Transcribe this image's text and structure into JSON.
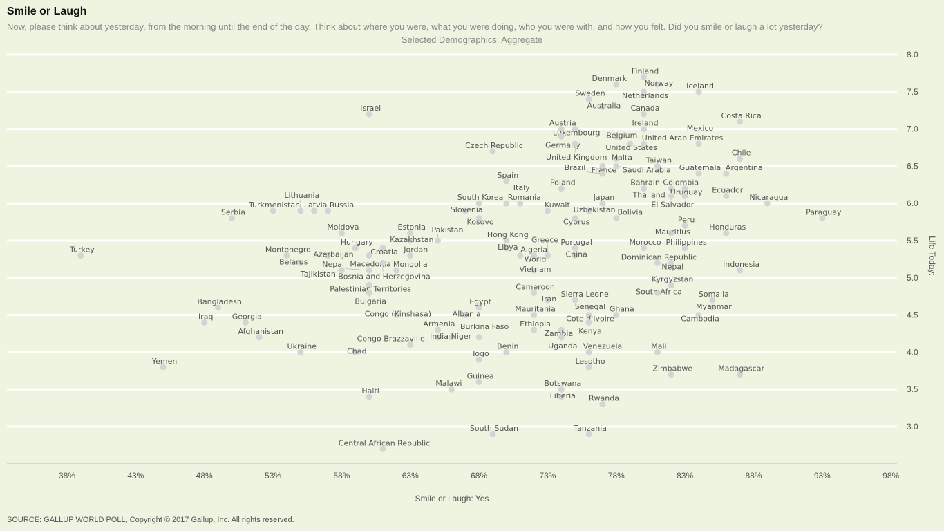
{
  "title": "Smile or Laugh",
  "subtitle": "Now, please think about yesterday, from the morning until the end of the day. Think about where you were, what you were doing, who you were with, and how you felt. Did you smile or laugh a lot yesterday?",
  "demographics": "Selected Demographics: Aggregate",
  "source": "SOURCE: GALLUP WORLD POLL, Copyright © 2017 Gallup, Inc. All rights reserved.",
  "colors": {
    "background": "#eef4df",
    "point": "#d4d4d4",
    "label": "#555555",
    "grid": "#ffffff"
  },
  "chart_data": {
    "type": "scatter",
    "xlabel": "Smile or Laugh: Yes",
    "ylabel": "Life Today:",
    "xlim": [
      34,
      98
    ],
    "ylim": [
      2.5,
      8.0
    ],
    "x_ticks": [
      "38%",
      "43%",
      "48%",
      "53%",
      "58%",
      "63%",
      "68%",
      "73%",
      "78%",
      "83%",
      "88%",
      "93%",
      "98%"
    ],
    "x_tick_values": [
      38,
      43,
      48,
      53,
      58,
      63,
      68,
      73,
      78,
      83,
      88,
      93,
      98
    ],
    "y_ticks": [
      "3.0",
      "3.5",
      "4.0",
      "4.5",
      "5.0",
      "5.5",
      "6.0",
      "6.5",
      "7.0",
      "7.5",
      "8.0"
    ],
    "y_tick_values": [
      3.0,
      3.5,
      4.0,
      4.5,
      5.0,
      5.5,
      6.0,
      6.5,
      7.0,
      7.5,
      8.0
    ],
    "grid": true,
    "points": [
      {
        "label": "Finland",
        "x": 80,
        "y": 7.7
      },
      {
        "label": "Denmark",
        "x": 78,
        "y": 7.6
      },
      {
        "label": "Norway",
        "x": 81,
        "y": 7.6
      },
      {
        "label": "Netherlands",
        "x": 80,
        "y": 7.5
      },
      {
        "label": "Iceland",
        "x": 84,
        "y": 7.5
      },
      {
        "label": "Sweden",
        "x": 76,
        "y": 7.4
      },
      {
        "label": "Australia",
        "x": 77,
        "y": 7.3
      },
      {
        "label": "Canada",
        "x": 80,
        "y": 7.2
      },
      {
        "label": "Israel",
        "x": 60,
        "y": 7.2
      },
      {
        "label": "Costa Rica",
        "x": 87,
        "y": 7.1
      },
      {
        "label": "Austria",
        "x": 74,
        "y": 7.0
      },
      {
        "label": "Luxembourg",
        "x": 75,
        "y": 7.0
      },
      {
        "label": "Ireland",
        "x": 80,
        "y": 7.0
      },
      {
        "label": "Germany",
        "x": 74,
        "y": 6.9
      },
      {
        "label": "Belgium",
        "x": 78,
        "y": 6.9
      },
      {
        "label": "United Kingdom",
        "x": 75,
        "y": 6.8
      },
      {
        "label": "United States",
        "x": 79,
        "y": 6.8
      },
      {
        "label": "United Arab Emirates",
        "x": 80,
        "y": 6.8
      },
      {
        "label": "Mexico",
        "x": 84,
        "y": 6.8
      },
      {
        "label": "Czech Republic",
        "x": 69,
        "y": 6.7
      },
      {
        "label": "Malta",
        "x": 78,
        "y": 6.6
      },
      {
        "label": "Chile",
        "x": 87,
        "y": 6.6
      },
      {
        "label": "France",
        "x": 77,
        "y": 6.5
      },
      {
        "label": "Saudi Arabia",
        "x": 78,
        "y": 6.5
      },
      {
        "label": "Taiwan",
        "x": 81,
        "y": 6.5
      },
      {
        "label": "Brazil",
        "x": 77,
        "y": 6.4
      },
      {
        "label": "Guatemala",
        "x": 84,
        "y": 6.4
      },
      {
        "label": "Argentina",
        "x": 86,
        "y": 6.4
      },
      {
        "label": "Spain",
        "x": 70,
        "y": 6.3
      },
      {
        "label": "Poland",
        "x": 74,
        "y": 6.2
      },
      {
        "label": "Bahrain",
        "x": 80,
        "y": 6.2
      },
      {
        "label": "Colombia",
        "x": 82,
        "y": 6.2
      },
      {
        "label": "Uruguay",
        "x": 83,
        "y": 6.2
      },
      {
        "label": "El Salvador",
        "x": 82,
        "y": 6.1
      },
      {
        "label": "Thailand",
        "x": 83,
        "y": 6.1
      },
      {
        "label": "Ecuador",
        "x": 86,
        "y": 6.1
      },
      {
        "label": "Japan",
        "x": 77,
        "y": 6.0
      },
      {
        "label": "Nicaragua",
        "x": 89,
        "y": 6.0
      },
      {
        "label": "South Korea",
        "x": 68,
        "y": 6.0
      },
      {
        "label": "Romania",
        "x": 70,
        "y": 6.0
      },
      {
        "label": "Italy",
        "x": 71,
        "y": 6.0
      },
      {
        "label": "Turkmenistan",
        "x": 53,
        "y": 5.9
      },
      {
        "label": "Lithuania",
        "x": 55,
        "y": 5.9
      },
      {
        "label": "Latvia",
        "x": 56,
        "y": 5.9
      },
      {
        "label": "Russia",
        "x": 57,
        "y": 5.9
      },
      {
        "label": "Slovenia",
        "x": 67,
        "y": 5.9
      },
      {
        "label": "Kuwait",
        "x": 73,
        "y": 5.9
      },
      {
        "label": "Uzbekistan",
        "x": 76,
        "y": 5.9
      },
      {
        "label": "Serbia",
        "x": 50,
        "y": 5.8
      },
      {
        "label": "Kosovo",
        "x": 68,
        "y": 5.8
      },
      {
        "label": "Cyprus",
        "x": 75,
        "y": 5.8
      },
      {
        "label": "Bolivia",
        "x": 78,
        "y": 5.8
      },
      {
        "label": "Paraguay",
        "x": 93,
        "y": 5.8
      },
      {
        "label": "Peru",
        "x": 83,
        "y": 5.7
      },
      {
        "label": "Moldova",
        "x": 58,
        "y": 5.6
      },
      {
        "label": "Estonia",
        "x": 63,
        "y": 5.6
      },
      {
        "label": "Mauritius",
        "x": 82,
        "y": 5.6
      },
      {
        "label": "Honduras",
        "x": 86,
        "y": 5.6
      },
      {
        "label": "Kazakhstan",
        "x": 63,
        "y": 5.5
      },
      {
        "label": "Pakistan",
        "x": 65,
        "y": 5.5
      },
      {
        "label": "Hong Kong",
        "x": 70,
        "y": 5.5
      },
      {
        "label": "Hungary",
        "x": 59,
        "y": 5.4
      },
      {
        "label": "Croatia",
        "x": 61,
        "y": 5.4
      },
      {
        "label": "Libya",
        "x": 70,
        "y": 5.4
      },
      {
        "label": "Portugal",
        "x": 75,
        "y": 5.4
      },
      {
        "label": "Morocco",
        "x": 80,
        "y": 5.4
      },
      {
        "label": "Philippines",
        "x": 83,
        "y": 5.4
      },
      {
        "label": "Turkey",
        "x": 39,
        "y": 5.3
      },
      {
        "label": "Montenegro",
        "x": 54,
        "y": 5.3
      },
      {
        "label": "Azerbaijan",
        "x": 57,
        "y": 5.3
      },
      {
        "label": "Macedonia",
        "x": 60,
        "y": 5.3
      },
      {
        "label": "Jordan",
        "x": 63,
        "y": 5.3
      },
      {
        "label": "Algeria",
        "x": 71,
        "y": 5.3
      },
      {
        "label": "World",
        "x": 72,
        "y": 5.3
      },
      {
        "label": "Greece",
        "x": 73,
        "y": 5.3
      },
      {
        "label": "China",
        "x": 75,
        "y": 5.3
      },
      {
        "label": "Belarus",
        "x": 55,
        "y": 5.2
      },
      {
        "label": "Bosnia and Herzegovina",
        "x": 61,
        "y": 5.2
      },
      {
        "label": "Dominican Republic",
        "x": 81,
        "y": 5.2
      },
      {
        "label": "Nepal",
        "x": 82,
        "y": 5.2
      },
      {
        "label": "Tajikistan",
        "x": 58,
        "y": 5.1
      },
      {
        "label": "Nepal",
        "x": 60,
        "y": 5.1
      },
      {
        "label": "Mongolia",
        "x": 62,
        "y": 5.1
      },
      {
        "label": "Vietnam",
        "x": 72,
        "y": 5.1
      },
      {
        "label": "Indonesia",
        "x": 87,
        "y": 5.1
      },
      {
        "label": "Palestinian Territories",
        "x": 60,
        "y": 4.9
      },
      {
        "label": "Kyrgyzstan",
        "x": 82,
        "y": 4.9
      },
      {
        "label": "Bulgaria",
        "x": 60,
        "y": 4.8
      },
      {
        "label": "Cameroon",
        "x": 72,
        "y": 4.8
      },
      {
        "label": "South Africa",
        "x": 81,
        "y": 4.8
      },
      {
        "label": "Iran",
        "x": 73,
        "y": 4.7
      },
      {
        "label": "Sierra Leone",
        "x": 75,
        "y": 4.7
      },
      {
        "label": "Somalia",
        "x": 85,
        "y": 4.7
      },
      {
        "label": "Bangladesh",
        "x": 49,
        "y": 4.6
      },
      {
        "label": "Egypt",
        "x": 68,
        "y": 4.6
      },
      {
        "label": "Senegal",
        "x": 76,
        "y": 4.6
      },
      {
        "label": "Myanmar",
        "x": 85,
        "y": 4.6
      },
      {
        "label": "Congo (Kinshasa)",
        "x": 62,
        "y": 4.5
      },
      {
        "label": "Albania",
        "x": 67,
        "y": 4.5
      },
      {
        "label": "Mauritania",
        "x": 72,
        "y": 4.5
      },
      {
        "label": "Cote d'Ivoire",
        "x": 76,
        "y": 4.5
      },
      {
        "label": "Ghana",
        "x": 78,
        "y": 4.5
      },
      {
        "label": "Cambodia",
        "x": 84,
        "y": 4.5
      },
      {
        "label": "Iraq",
        "x": 48,
        "y": 4.4
      },
      {
        "label": "Georgia",
        "x": 51,
        "y": 4.4
      },
      {
        "label": "Kenya",
        "x": 76,
        "y": 4.4
      },
      {
        "label": "Armenia",
        "x": 65,
        "y": 4.3
      },
      {
        "label": "Ethiopia",
        "x": 72,
        "y": 4.3
      },
      {
        "label": "Zambia",
        "x": 74,
        "y": 4.3
      },
      {
        "label": "Afghanistan",
        "x": 52,
        "y": 4.2
      },
      {
        "label": "India",
        "x": 65,
        "y": 4.2
      },
      {
        "label": "Niger",
        "x": 66,
        "y": 4.2
      },
      {
        "label": "Burkina Faso",
        "x": 68,
        "y": 4.2
      },
      {
        "label": "Uganda",
        "x": 74,
        "y": 4.2
      },
      {
        "label": "Congo Brazzaville",
        "x": 63,
        "y": 4.1
      },
      {
        "label": "Ukraine",
        "x": 55,
        "y": 4.0
      },
      {
        "label": "Chad",
        "x": 59,
        "y": 4.0
      },
      {
        "label": "Benin",
        "x": 70,
        "y": 4.0
      },
      {
        "label": "Venezuela",
        "x": 76,
        "y": 4.0
      },
      {
        "label": "Mali",
        "x": 81,
        "y": 4.0
      },
      {
        "label": "Togo",
        "x": 68,
        "y": 3.9
      },
      {
        "label": "Yemen",
        "x": 45,
        "y": 3.8
      },
      {
        "label": "Lesotho",
        "x": 76,
        "y": 3.8
      },
      {
        "label": "Zimbabwe",
        "x": 82,
        "y": 3.7
      },
      {
        "label": "Madagascar",
        "x": 87,
        "y": 3.7
      },
      {
        "label": "Guinea",
        "x": 68,
        "y": 3.6
      },
      {
        "label": "Malawi",
        "x": 66,
        "y": 3.5
      },
      {
        "label": "Botswana",
        "x": 74,
        "y": 3.5
      },
      {
        "label": "Haiti",
        "x": 60,
        "y": 3.4
      },
      {
        "label": "Liberia",
        "x": 74,
        "y": 3.4
      },
      {
        "label": "Rwanda",
        "x": 77,
        "y": 3.3
      },
      {
        "label": "South Sudan",
        "x": 69,
        "y": 2.9
      },
      {
        "label": "Tanzania",
        "x": 76,
        "y": 2.9
      },
      {
        "label": "Central African Republic",
        "x": 61,
        "y": 2.7
      }
    ]
  }
}
